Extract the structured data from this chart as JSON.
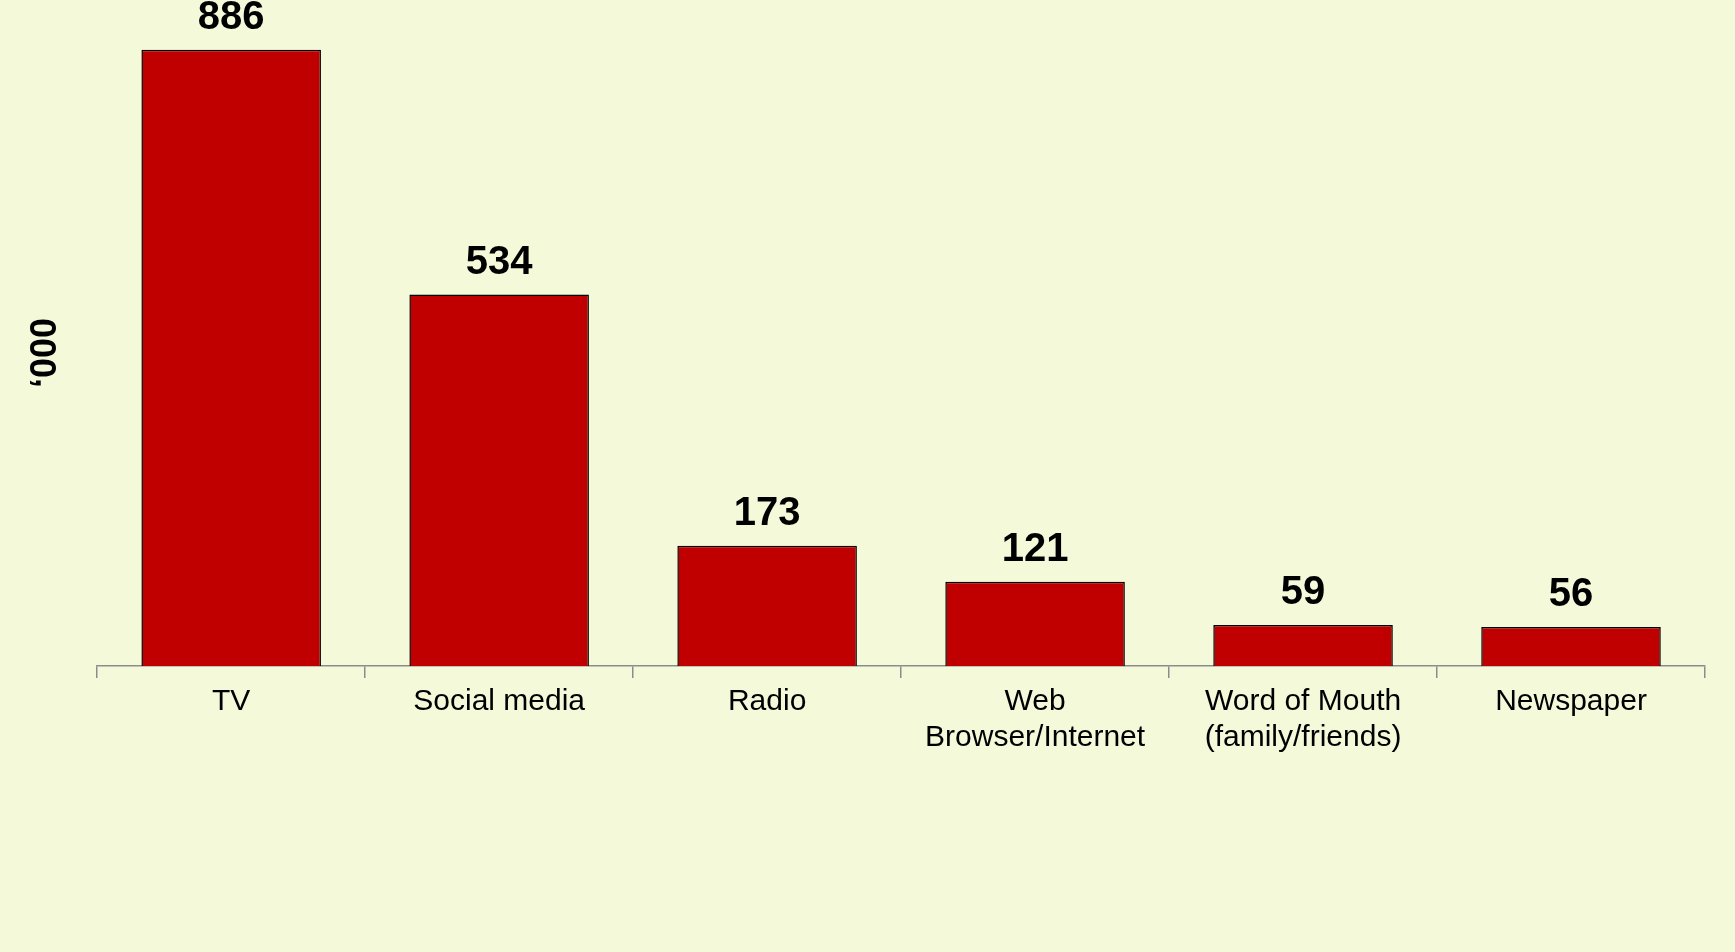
{
  "chart_data": {
    "type": "bar",
    "ylabel": "‘000",
    "categories": [
      "TV",
      "Social media",
      "Radio",
      "Web Browser/Internet",
      "Word of Mouth (family/friends)",
      "Newspaper"
    ],
    "values": [
      886,
      534,
      173,
      121,
      59,
      56
    ],
    "color": "#c00000",
    "data_labels": true,
    "grid": false,
    "legend": false,
    "tick_labels": "x"
  }
}
